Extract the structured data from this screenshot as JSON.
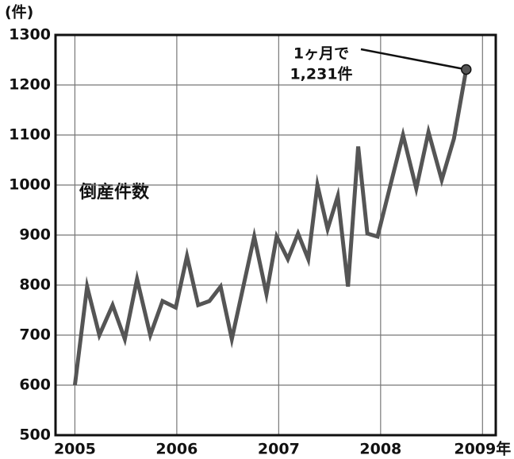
{
  "chart_data": {
    "type": "line",
    "y_unit": "(件)",
    "x": [
      2005,
      2005.12,
      2005.24,
      2005.37,
      2005.49,
      2005.61,
      2005.74,
      2005.86,
      2005.99,
      2006.1,
      2006.21,
      2006.32,
      2006.43,
      2006.54,
      2006.76,
      2006.88,
      2006.98,
      2007.09,
      2007.19,
      2007.29,
      2007.38,
      2007.48,
      2007.58,
      2007.68,
      2007.78,
      2007.87,
      2007.97,
      2008.22,
      2008.35,
      2008.47,
      2008.6,
      2008.72,
      2008.84
    ],
    "series": [
      {
        "name": "倒産件数",
        "color": "#555555",
        "values": [
          600,
          797,
          700,
          760,
          692,
          812,
          700,
          768,
          755,
          858,
          760,
          768,
          797,
          692,
          897,
          782,
          897,
          852,
          903,
          852,
          1000,
          912,
          978,
          797,
          1077,
          903,
          897,
          1100,
          993,
          1106,
          1010,
          1093,
          1231
        ],
        "value_labels": {
          "32": "1,231件"
        }
      }
    ],
    "annotation": "1ヶ月で",
    "xlim": [
      2004.81,
      2009.13
    ],
    "xticks": [
      2005,
      2006,
      2007,
      2008,
      {
        "value": 2009,
        "label": "2009年"
      }
    ],
    "ylim": [
      500,
      1300
    ],
    "yticks": [
      500,
      600,
      700,
      800,
      900,
      1000,
      1100,
      1200,
      1300
    ],
    "grid": true
  }
}
